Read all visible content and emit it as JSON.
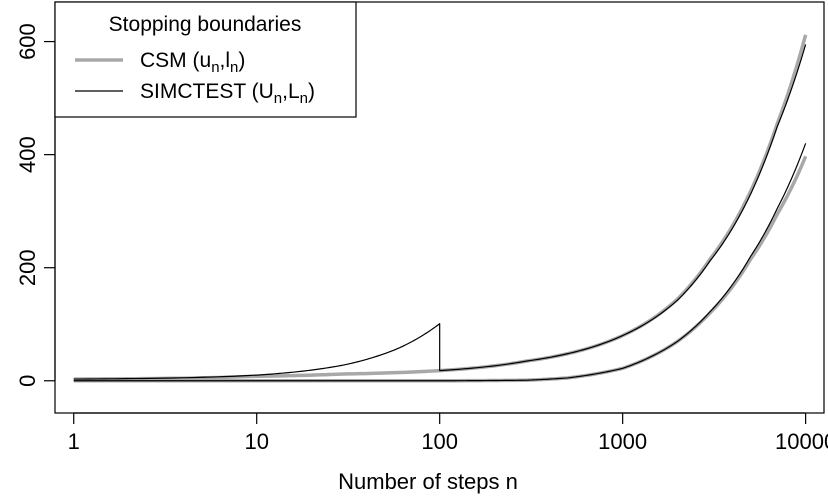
{
  "chart_data": {
    "type": "line",
    "x_scale": "log",
    "xlabel": "Number of steps n",
    "ylabel": "",
    "xlim": [
      0.79,
      12600
    ],
    "ylim": [
      -57,
      670
    ],
    "x_ticks": [
      {
        "value": 1,
        "label": "1"
      },
      {
        "value": 10,
        "label": "10"
      },
      {
        "value": 100,
        "label": "100"
      },
      {
        "value": 1000,
        "label": "1000"
      },
      {
        "value": 10000,
        "label": "10000"
      }
    ],
    "y_ticks": [
      {
        "value": 0,
        "label": "0"
      },
      {
        "value": 200,
        "label": "200"
      },
      {
        "value": 400,
        "label": "400"
      },
      {
        "value": 600,
        "label": "600"
      }
    ],
    "legend": {
      "title": "Stopping boundaries",
      "placement": "top-left",
      "entries": [
        {
          "label_main": "CSM (u",
          "sub1": "n",
          "mid": ",l",
          "sub2": "n",
          "end": ")",
          "color": "#a8a8a8",
          "width": 3.5
        },
        {
          "label_main": "SIMCTEST (U",
          "sub1": "n",
          "mid": ",L",
          "sub2": "n",
          "end": ")",
          "color": "#000000",
          "width": 1.2
        }
      ]
    },
    "series": [
      {
        "key": "csm-upper",
        "color": "#a8a8a8",
        "width": 3.5,
        "x": [
          1,
          10,
          30,
          100,
          300,
          1000,
          2000,
          3000,
          5000,
          7000,
          10000
        ],
        "y": [
          3,
          8,
          12,
          18,
          35,
          80,
          145,
          215,
          335,
          455,
          612
        ]
      },
      {
        "key": "csm-lower",
        "color": "#a8a8a8",
        "width": 3.5,
        "x": [
          1,
          100,
          300,
          500,
          1000,
          2000,
          3000,
          5000,
          7000,
          10000
        ],
        "y": [
          0,
          0,
          1,
          5,
          22,
          70,
          120,
          215,
          295,
          397
        ]
      },
      {
        "key": "simctest-upper",
        "color": "#000000",
        "width": 1.2,
        "x": [
          1,
          10,
          30,
          60,
          100,
          100,
          300,
          1000,
          2000,
          3000,
          5000,
          7000,
          10000
        ],
        "y": [
          3,
          10,
          28,
          58,
          101,
          18,
          35,
          80,
          143,
          212,
          330,
          450,
          595
        ]
      },
      {
        "key": "simctest-lower",
        "color": "#000000",
        "width": 1.2,
        "x": [
          1,
          100,
          300,
          500,
          1000,
          2000,
          3000,
          5000,
          7000,
          10000
        ],
        "y": [
          0,
          0,
          1,
          5,
          22,
          70,
          122,
          220,
          305,
          420
        ]
      }
    ]
  }
}
